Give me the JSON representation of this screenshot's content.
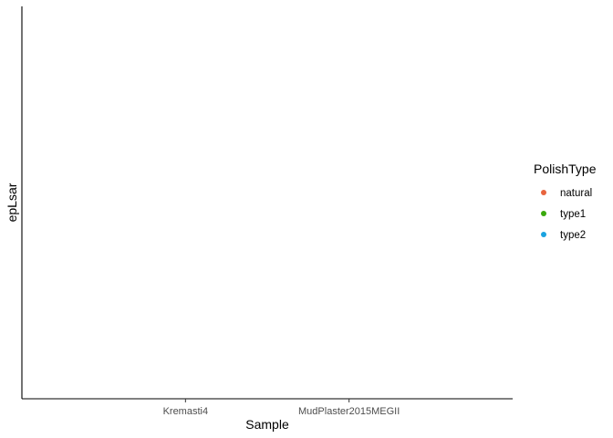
{
  "chart_data": {
    "type": "scatter",
    "title": "",
    "xlabel": "Sample",
    "ylabel": "epLsar",
    "categories": [
      "Kremasti4",
      "MudPlaster2015MEGII"
    ],
    "series": [],
    "grid": false,
    "legend": {
      "title": "PolishType",
      "placement": "right",
      "entries": [
        {
          "label": "natural",
          "color": "#e8643d"
        },
        {
          "label": "type1",
          "color": "#3aa90d"
        },
        {
          "label": "type2",
          "color": "#1aa3e0"
        }
      ]
    }
  }
}
